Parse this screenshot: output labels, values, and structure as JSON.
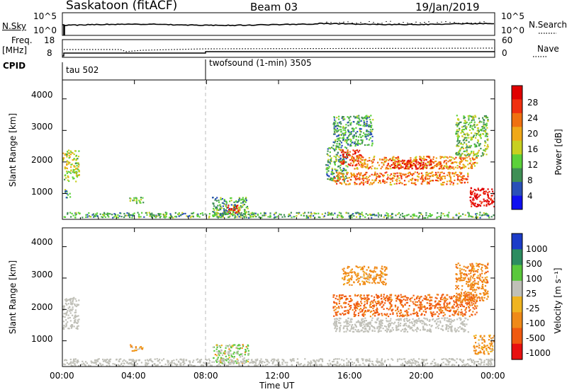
{
  "header": {
    "station": "Saskatoon (fitACF)",
    "beam": "Beam 03",
    "date": "19/Jan/2019"
  },
  "noise_panel": {
    "left_label": "N.Sky",
    "right_label": "N.Search",
    "y_ticks_left": [
      "10^5",
      "10^0"
    ],
    "y_ticks_right": [
      "10^5",
      "10^0"
    ]
  },
  "freq_panel": {
    "left_label": "Freq.",
    "left_unit": "[MHz]",
    "right_label": "Nave",
    "y_ticks_left": [
      "18",
      "8"
    ],
    "y_ticks_right": [
      "60",
      "0"
    ]
  },
  "cpid_panel": {
    "label": "CPID",
    "modes": [
      {
        "start": "00:00",
        "text": "tau 502"
      },
      {
        "start": "08:00",
        "text": "twofsound (1-min) 3505"
      }
    ]
  },
  "axes": {
    "ylabel": "Slant Range [km]",
    "xlabel": "Time UT",
    "x_ticks": [
      "00:00",
      "04:00",
      "08:00",
      "12:00",
      "16:00",
      "20:00",
      "00:00"
    ],
    "y_ticks": [
      "1000",
      "2000",
      "3000",
      "4000"
    ],
    "y_range_km": [
      180,
      4600
    ],
    "x_range_h": [
      0,
      24
    ],
    "mode_change_line_h": 8
  },
  "colorbars": {
    "power": {
      "label": "Power [dB]",
      "ticks": [
        "4",
        "8",
        "12",
        "16",
        "20",
        "24",
        "28"
      ],
      "colors": [
        "#1010f0",
        "#2a50b8",
        "#3f8f55",
        "#5cd13a",
        "#c8d020",
        "#f0a818",
        "#f07010",
        "#f03010",
        "#e00000"
      ]
    },
    "velocity": {
      "label": "Velocity [m s⁻¹]",
      "ticks": [
        "1000",
        "500",
        "100",
        "25",
        "-25",
        "-100",
        "-500",
        "-1000"
      ],
      "colors": [
        "#1c3cc8",
        "#2c8c60",
        "#5ac83c",
        "#c0c0b8",
        "#f0b420",
        "#f08a18",
        "#f05a10",
        "#e81010"
      ]
    },
    "ground_scatter_color": "#c0c0b8"
  },
  "chart_data": [
    {
      "type": "heatmap",
      "title": "Power [dB]",
      "xlabel": "Time UT",
      "ylabel": "Slant Range [km]",
      "xlim_h": [
        0,
        24
      ],
      "ylim_km": [
        180,
        4600
      ],
      "value_range_db": [
        0,
        30
      ],
      "regions": [
        {
          "t": [
            0.0,
            0.9
          ],
          "r": [
            1400,
            2400
          ],
          "db": 14
        },
        {
          "t": [
            0.1,
            0.4
          ],
          "r": [
            850,
            1150
          ],
          "db": 10
        },
        {
          "t": [
            3.7,
            4.5
          ],
          "r": [
            700,
            900
          ],
          "db": 12
        },
        {
          "t": [
            8.3,
            10.3
          ],
          "r": [
            300,
            900
          ],
          "db": 10
        },
        {
          "t": [
            9.1,
            9.8
          ],
          "r": [
            400,
            650
          ],
          "db": 27
        },
        {
          "t": [
            14.6,
            15.8
          ],
          "r": [
            1400,
            2500
          ],
          "db": 10
        },
        {
          "t": [
            15.4,
            16.6
          ],
          "r": [
            1900,
            2400
          ],
          "db": 26
        },
        {
          "t": [
            16.0,
            23.0
          ],
          "r": [
            1800,
            2200
          ],
          "db": 20
        },
        {
          "t": [
            18.0,
            20.5
          ],
          "r": [
            1800,
            2100
          ],
          "db": 27
        },
        {
          "t": [
            15.0,
            22.5
          ],
          "r": [
            1300,
            1700
          ],
          "db": 21
        },
        {
          "t": [
            22.6,
            24.0
          ],
          "r": [
            600,
            1200
          ],
          "db": 29
        },
        {
          "t": [
            15.0,
            17.2
          ],
          "r": [
            2500,
            3500
          ],
          "db": 9
        },
        {
          "t": [
            21.8,
            23.6
          ],
          "r": [
            2200,
            3500
          ],
          "db": 12
        },
        {
          "t": [
            0.0,
            24.0
          ],
          "r": [
            250,
            420
          ],
          "db": 10
        }
      ]
    },
    {
      "type": "heatmap",
      "title": "Velocity [m s⁻¹]",
      "xlabel": "Time UT",
      "ylabel": "Slant Range [km]",
      "xlim_h": [
        0,
        24
      ],
      "ylim_km": [
        180,
        4600
      ],
      "value_range_ms": [
        -1000,
        1000
      ],
      "regions": [
        {
          "t": [
            0.0,
            0.9
          ],
          "r": [
            1400,
            2400
          ],
          "v": 0,
          "ground_scatter": true
        },
        {
          "t": [
            3.7,
            4.5
          ],
          "r": [
            700,
            900
          ],
          "v": -80
        },
        {
          "t": [
            8.3,
            10.3
          ],
          "r": [
            300,
            900
          ],
          "v": 60
        },
        {
          "t": [
            15.0,
            23.0
          ],
          "r": [
            1800,
            2500
          ],
          "v": -350
        },
        {
          "t": [
            15.0,
            22.5
          ],
          "r": [
            1300,
            1750
          ],
          "v": 0,
          "ground_scatter": true
        },
        {
          "t": [
            15.5,
            18.0
          ],
          "r": [
            2800,
            3400
          ],
          "v": -150
        },
        {
          "t": [
            21.8,
            23.6
          ],
          "r": [
            2300,
            3500
          ],
          "v": -200
        },
        {
          "t": [
            22.8,
            24.0
          ],
          "r": [
            600,
            1200
          ],
          "v": -150
        },
        {
          "t": [
            0.0,
            24.0
          ],
          "r": [
            220,
            450
          ],
          "v": 0,
          "ground_scatter": true
        }
      ]
    }
  ]
}
